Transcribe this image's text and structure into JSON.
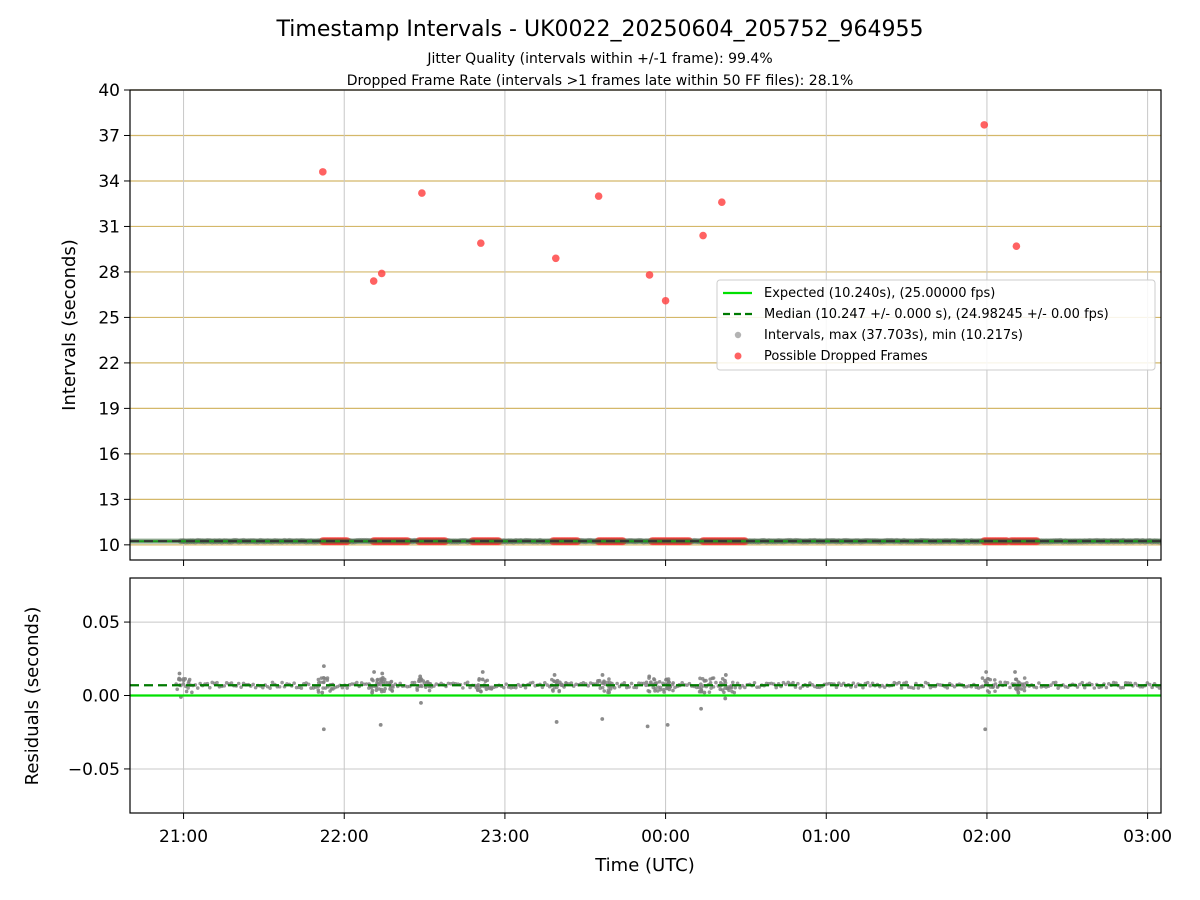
{
  "colors": {
    "expected": "#00e000",
    "median": "#007a00",
    "interval_point": "#808080",
    "dropped": "#ff3b3b",
    "hgrid_top": "#d4b86a",
    "grid": "#c8c8c8",
    "axis": "#000000"
  },
  "chart_data": [
    {
      "type": "scatter",
      "title": "Timestamp Intervals - UK0022_20250604_205752_964955",
      "subtitle_lines": [
        "Jitter Quality (intervals within +/-1 frame): 99.4%",
        "Dropped Frame Rate (intervals >1 frames late within 50 FF files): 28.1%"
      ],
      "xlabel": "",
      "ylabel": "Intervals (seconds)",
      "x_range": [
        "20:40",
        "03:05"
      ],
      "ylim": [
        9,
        40
      ],
      "yticks": [
        10,
        13,
        16,
        19,
        22,
        25,
        28,
        31,
        34,
        37,
        40
      ],
      "xticks": [
        "21:00",
        "22:00",
        "23:00",
        "00:00",
        "01:00",
        "02:00",
        "03:00"
      ],
      "grid": true,
      "legend_position": "center-right",
      "legend": [
        {
          "label": "Expected (10.240s), (25.00000 fps)",
          "kind": "line"
        },
        {
          "label": "Median (10.247 +/- 0.000 s), (24.98245 +/- 0.00 fps)",
          "kind": "dashed"
        },
        {
          "label": "Intervals, max (37.703s), min (10.217s)",
          "kind": "gray-dot"
        },
        {
          "label": "Possible Dropped Frames",
          "kind": "red-dot"
        }
      ],
      "expected_value": 10.24,
      "median_value": 10.247,
      "intervals_x_span": [
        "20:59",
        "03:05"
      ],
      "dropped_clusters": [
        {
          "x_start": "21:52",
          "x_end": "22:01",
          "y": 10.24
        },
        {
          "x_start": "22:11",
          "x_end": "22:24",
          "y": 10.24
        },
        {
          "x_start": "22:28",
          "x_end": "22:38",
          "y": 10.24
        },
        {
          "x_start": "22:48",
          "x_end": "22:58",
          "y": 10.24
        },
        {
          "x_start": "23:18",
          "x_end": "23:27",
          "y": 10.24
        },
        {
          "x_start": "23:35",
          "x_end": "23:44",
          "y": 10.24
        },
        {
          "x_start": "23:55",
          "x_end": "00:09",
          "y": 10.24
        },
        {
          "x_start": "00:14",
          "x_end": "00:30",
          "y": 10.24
        },
        {
          "x_start": "01:59",
          "x_end": "02:08",
          "y": 10.24
        },
        {
          "x_start": "02:09",
          "x_end": "02:19",
          "y": 10.24
        }
      ],
      "dropped_outliers": [
        {
          "x": "21:52",
          "y": 34.6
        },
        {
          "x": "22:11",
          "y": 27.4
        },
        {
          "x": "22:14",
          "y": 27.9
        },
        {
          "x": "22:29",
          "y": 33.2
        },
        {
          "x": "22:51",
          "y": 29.9
        },
        {
          "x": "23:19",
          "y": 28.9
        },
        {
          "x": "23:35",
          "y": 33.0
        },
        {
          "x": "23:54",
          "y": 27.8
        },
        {
          "x": "00:00",
          "y": 26.1
        },
        {
          "x": "00:14",
          "y": 30.4
        },
        {
          "x": "00:21",
          "y": 32.6
        },
        {
          "x": "01:59",
          "y": 37.7
        },
        {
          "x": "02:11",
          "y": 29.7
        }
      ]
    },
    {
      "type": "scatter",
      "xlabel": "Time (UTC)",
      "ylabel": "Residuals (seconds)",
      "x_range": [
        "20:40",
        "03:05"
      ],
      "ylim": [
        -0.08,
        0.08
      ],
      "yticks": [
        0.05,
        0.0,
        -0.05
      ],
      "ytick_labels": [
        "0.05",
        "0.00",
        "−0.05"
      ],
      "xticks": [
        "21:00",
        "22:00",
        "23:00",
        "00:00",
        "01:00",
        "02:00",
        "03:00"
      ],
      "grid": true,
      "expected_residual": 0.0,
      "median_residual": 0.007,
      "points_x_span": [
        "20:59",
        "03:05"
      ],
      "clusters": [
        {
          "x": "20:59",
          "y": [
            0.015,
            -0.001,
            0.011
          ]
        },
        {
          "x": "21:52",
          "y": [
            0.02,
            -0.023,
            0.012,
            0.002
          ]
        },
        {
          "x": "22:11",
          "y": [
            0.016,
            0.002,
            0.011
          ]
        },
        {
          "x": "22:14",
          "y": [
            0.015,
            -0.02,
            0.012
          ]
        },
        {
          "x": "22:29",
          "y": [
            0.013,
            -0.005,
            0.01
          ]
        },
        {
          "x": "22:51",
          "y": [
            0.016,
            0.003,
            0.011
          ]
        },
        {
          "x": "23:19",
          "y": [
            0.014,
            -0.018,
            0.01
          ]
        },
        {
          "x": "23:36",
          "y": [
            0.014,
            -0.016,
            0.01
          ]
        },
        {
          "x": "23:54",
          "y": [
            0.013,
            -0.021,
            0.009
          ]
        },
        {
          "x": "00:01",
          "y": [
            0.011,
            -0.02,
            0.009
          ]
        },
        {
          "x": "00:14",
          "y": [
            0.01,
            -0.009,
            0.002
          ]
        },
        {
          "x": "00:22",
          "y": [
            0.014,
            -0.002,
            0.01
          ]
        },
        {
          "x": "02:00",
          "y": [
            0.016,
            -0.023,
            0.01
          ]
        },
        {
          "x": "02:11",
          "y": [
            0.016,
            0.002,
            0.011
          ]
        }
      ]
    }
  ]
}
